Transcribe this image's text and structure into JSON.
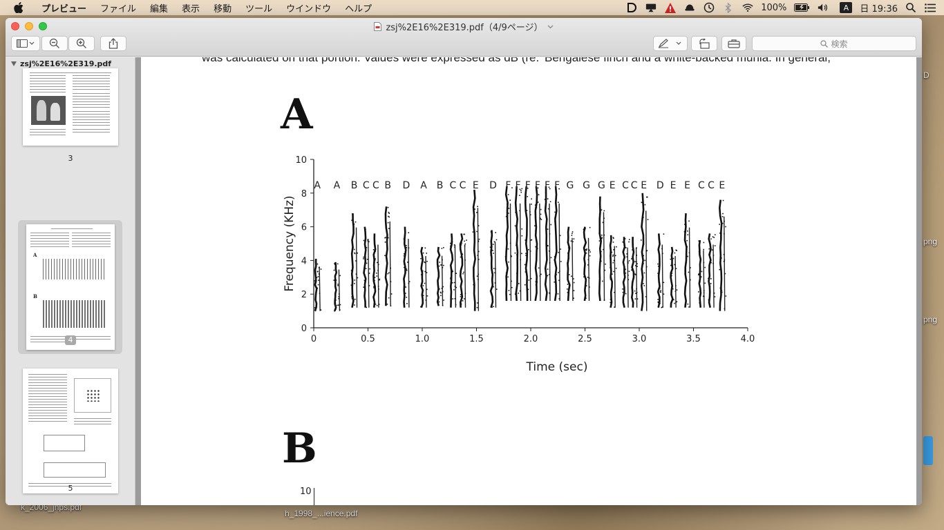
{
  "menubar": {
    "app_name": "プレビュー",
    "items": [
      "ファイル",
      "編集",
      "表示",
      "移動",
      "ツール",
      "ウインドウ",
      "ヘルプ"
    ],
    "battery": "100%",
    "input_mode": "A",
    "clock": "日 19:36"
  },
  "window": {
    "title": "zsj%2E16%2E319.pdf（4/9ページ）",
    "search_placeholder": "検索"
  },
  "sidebar": {
    "header": "zsj%2E16%2E319.pdf",
    "pages": [
      {
        "number": "3",
        "selected": false
      },
      {
        "number": "4",
        "selected": true
      },
      {
        "number": "5",
        "selected": false
      }
    ]
  },
  "document": {
    "text_left": "was calculated on that portion. Values were expressed as dB (re.",
    "text_right": "Bengalese finch and a white-backed munia. In general,",
    "figure_a_label": "A",
    "figure_b_label": "B",
    "figure_b_first_tick": "10"
  },
  "desktop": {
    "labels": [
      "k_2006_jnps.pdf",
      "h_1998_...ience.pdf",
      "D",
      "png",
      "png"
    ]
  },
  "chart_data": {
    "type": "heatmap",
    "title": "",
    "xlabel": "Time (sec)",
    "ylabel": "Frequency (KHz)",
    "xlim": [
      0,
      4.0
    ],
    "ylim": [
      0,
      10
    ],
    "x_ticks": [
      "0",
      "0.5",
      "1.0",
      "1.5",
      "2.0",
      "2.5",
      "3.0",
      "3.5",
      "4.0"
    ],
    "y_ticks": [
      "0",
      "2",
      "4",
      "6",
      "8",
      "10"
    ],
    "x_tick_values": [
      0,
      0.5,
      1.0,
      1.5,
      2.0,
      2.5,
      3.0,
      3.5,
      4.0
    ],
    "y_tick_values": [
      0,
      2,
      4,
      6,
      8,
      10
    ],
    "syllables": [
      {
        "label": "A",
        "t": 0.02,
        "fmin": 1.0,
        "fmax": 4.1
      },
      {
        "label": "A",
        "t": 0.2,
        "fmin": 1.0,
        "fmax": 3.9
      },
      {
        "label": "B",
        "t": 0.36,
        "fmin": 1.2,
        "fmax": 6.8
      },
      {
        "label": "C",
        "t": 0.47,
        "fmin": 1.2,
        "fmax": 6.0
      },
      {
        "label": "C",
        "t": 0.56,
        "fmin": 1.2,
        "fmax": 5.6
      },
      {
        "label": "B",
        "t": 0.67,
        "fmin": 1.3,
        "fmax": 7.2
      },
      {
        "label": "D",
        "t": 0.84,
        "fmin": 1.2,
        "fmax": 6.0
      },
      {
        "label": "A",
        "t": 1.0,
        "fmin": 1.2,
        "fmax": 4.8
      },
      {
        "label": "B",
        "t": 1.15,
        "fmin": 1.3,
        "fmax": 4.8
      },
      {
        "label": "C",
        "t": 1.27,
        "fmin": 1.2,
        "fmax": 5.6
      },
      {
        "label": "C",
        "t": 1.36,
        "fmin": 1.2,
        "fmax": 5.6
      },
      {
        "label": "E",
        "t": 1.48,
        "fmin": 1.0,
        "fmax": 8.2
      },
      {
        "label": "D",
        "t": 1.64,
        "fmin": 1.2,
        "fmax": 5.8
      },
      {
        "label": "F",
        "t": 1.78,
        "fmin": 1.6,
        "fmax": 8.4
      },
      {
        "label": "F",
        "t": 1.87,
        "fmin": 1.6,
        "fmax": 8.4
      },
      {
        "label": "F",
        "t": 1.96,
        "fmin": 1.6,
        "fmax": 8.4
      },
      {
        "label": "F",
        "t": 2.05,
        "fmin": 1.6,
        "fmax": 8.4
      },
      {
        "label": "F",
        "t": 2.14,
        "fmin": 1.6,
        "fmax": 8.4
      },
      {
        "label": "F",
        "t": 2.23,
        "fmin": 1.6,
        "fmax": 8.4
      },
      {
        "label": "G",
        "t": 2.35,
        "fmin": 1.6,
        "fmax": 6.0
      },
      {
        "label": "G",
        "t": 2.5,
        "fmin": 1.6,
        "fmax": 6.0
      },
      {
        "label": "G",
        "t": 2.64,
        "fmin": 1.6,
        "fmax": 7.8
      },
      {
        "label": "E",
        "t": 2.74,
        "fmin": 1.2,
        "fmax": 5.5
      },
      {
        "label": "C",
        "t": 2.86,
        "fmin": 1.2,
        "fmax": 5.4
      },
      {
        "label": "C",
        "t": 2.94,
        "fmin": 1.2,
        "fmax": 5.4
      },
      {
        "label": "E",
        "t": 3.03,
        "fmin": 1.0,
        "fmax": 8.0
      },
      {
        "label": "D",
        "t": 3.18,
        "fmin": 1.2,
        "fmax": 5.6
      },
      {
        "label": "E",
        "t": 3.3,
        "fmin": 1.2,
        "fmax": 4.8
      },
      {
        "label": "E",
        "t": 3.43,
        "fmin": 1.2,
        "fmax": 6.8
      },
      {
        "label": "C",
        "t": 3.56,
        "fmin": 1.2,
        "fmax": 5.2
      },
      {
        "label": "C",
        "t": 3.65,
        "fmin": 1.2,
        "fmax": 5.6
      },
      {
        "label": "E",
        "t": 3.75,
        "fmin": 1.0,
        "fmax": 7.6
      }
    ]
  }
}
